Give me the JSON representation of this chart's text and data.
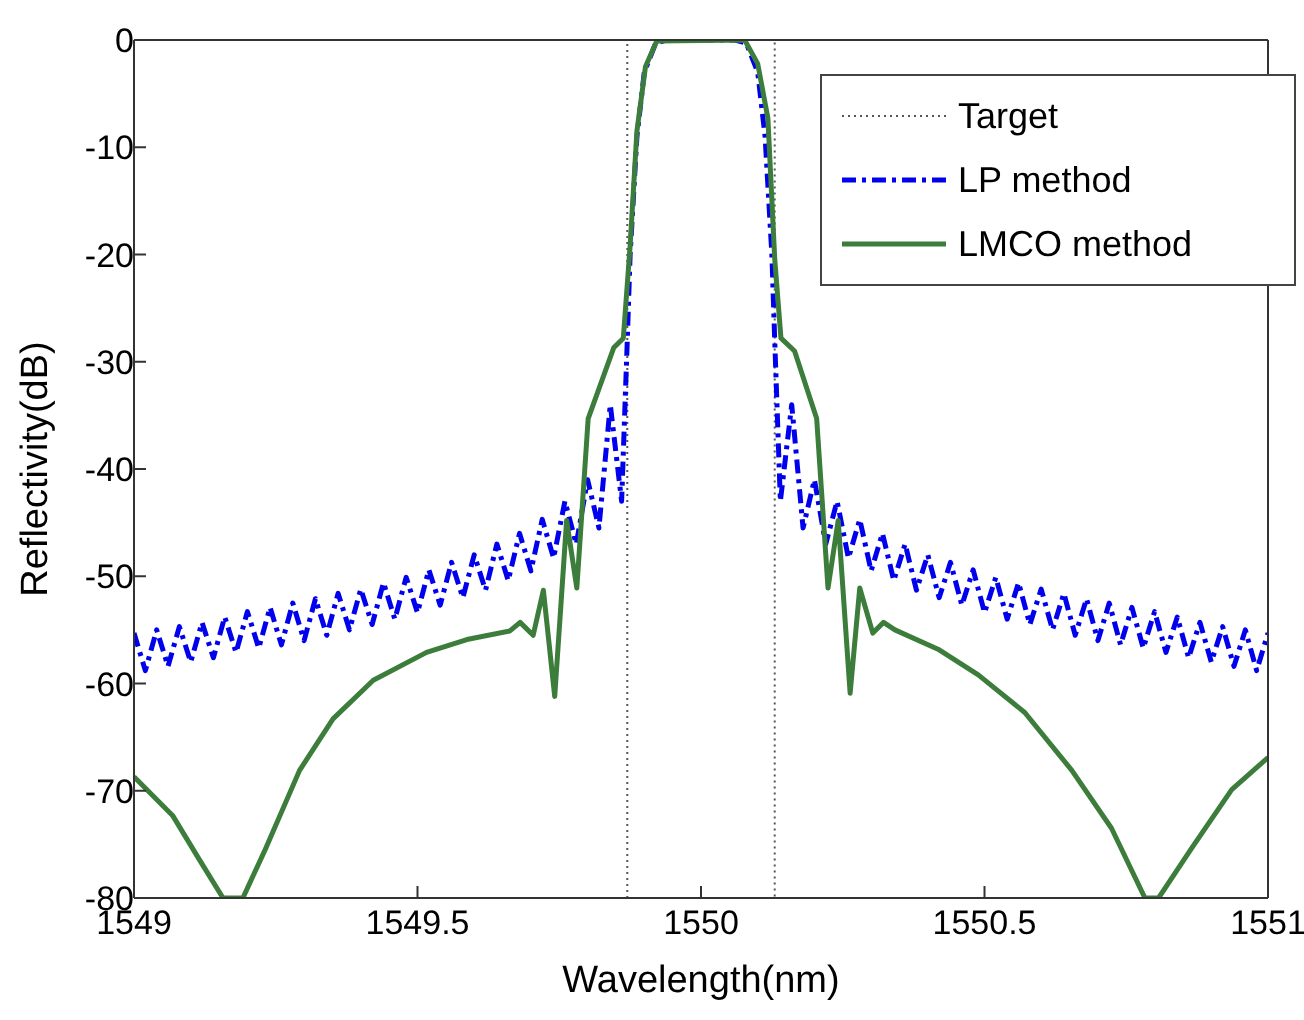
{
  "chart_data": {
    "type": "line",
    "xlabel": "Wavelength(nm)",
    "ylabel": "Reflectivity(dB)",
    "xlim": [
      1549,
      1551
    ],
    "xticks": [
      1549,
      1549.5,
      1550,
      1550.5,
      1551
    ],
    "ylim": [
      -80,
      0
    ],
    "yticks": [
      -80,
      -70,
      -60,
      -50,
      -40,
      -30,
      -20,
      -10,
      0
    ],
    "grid": false,
    "legend": "top right",
    "marker": "none",
    "series": [
      {
        "name": "Target",
        "color": "#555555",
        "line_style": "dotted",
        "x": [
          1549.87,
          1549.87,
          1550.13,
          1550.13
        ],
        "values": [
          -80,
          0,
          0,
          -80
        ]
      },
      {
        "name": "LP method",
        "color": "#0000ee",
        "line_style": "dashed",
        "x": [
          1549.0,
          1549.02,
          1549.04,
          1549.06,
          1549.08,
          1549.1,
          1549.12,
          1549.14,
          1549.16,
          1549.18,
          1549.2,
          1549.22,
          1549.24,
          1549.26,
          1549.28,
          1549.3,
          1549.32,
          1549.34,
          1549.36,
          1549.38,
          1549.4,
          1549.42,
          1549.44,
          1549.46,
          1549.48,
          1549.5,
          1549.52,
          1549.54,
          1549.56,
          1549.58,
          1549.6,
          1549.62,
          1549.64,
          1549.66,
          1549.68,
          1549.7,
          1549.72,
          1549.74,
          1549.76,
          1549.78,
          1549.8,
          1549.82,
          1549.84,
          1549.86,
          1549.87,
          1549.875,
          1549.887,
          1549.9,
          1549.92,
          1549.94,
          1550.06,
          1550.08,
          1550.1,
          1550.113,
          1550.125,
          1550.13,
          1550.14,
          1550.16,
          1550.18,
          1550.2,
          1550.22,
          1550.24,
          1550.26,
          1550.28,
          1550.3,
          1550.32,
          1550.34,
          1550.36,
          1550.38,
          1550.4,
          1550.42,
          1550.44,
          1550.46,
          1550.48,
          1550.5,
          1550.52,
          1550.54,
          1550.56,
          1550.58,
          1550.6,
          1550.62,
          1550.64,
          1550.66,
          1550.68,
          1550.7,
          1550.72,
          1550.74,
          1550.76,
          1550.78,
          1550.8,
          1550.82,
          1550.84,
          1550.86,
          1550.88,
          1550.9,
          1550.92,
          1550.94,
          1550.96,
          1550.98,
          1551.0
        ],
        "values": [
          -55.3,
          -58.8,
          -55.0,
          -58.4,
          -54.7,
          -58.0,
          -54.3,
          -57.6,
          -53.8,
          -57.1,
          -53.3,
          -56.7,
          -52.9,
          -56.4,
          -52.5,
          -56.0,
          -52.1,
          -55.5,
          -51.6,
          -55.0,
          -51.2,
          -54.5,
          -50.6,
          -54.0,
          -50.1,
          -53.4,
          -49.4,
          -52.7,
          -48.7,
          -52.0,
          -48.0,
          -51.3,
          -47.0,
          -50.4,
          -46.0,
          -49.5,
          -44.7,
          -48.3,
          -43.0,
          -47.0,
          -41.0,
          -45.5,
          -34.0,
          -43.0,
          -28,
          -20,
          -9,
          -3,
          -0.3,
          0,
          0,
          -0.3,
          -3,
          -9,
          -20,
          -28,
          -43.0,
          -34.0,
          -45.5,
          -41.0,
          -47.0,
          -43.0,
          -48.3,
          -44.7,
          -49.5,
          -46.0,
          -50.4,
          -47.0,
          -51.3,
          -48.0,
          -52.0,
          -48.7,
          -52.7,
          -49.4,
          -53.4,
          -50.1,
          -54.0,
          -50.6,
          -54.5,
          -51.2,
          -55.0,
          -51.6,
          -55.5,
          -52.1,
          -56.0,
          -52.5,
          -56.4,
          -52.9,
          -56.7,
          -53.3,
          -57.1,
          -53.8,
          -57.6,
          -54.3,
          -58.0,
          -54.7,
          -58.4,
          -55.0,
          -58.8,
          -55.3
        ]
      },
      {
        "name": "LMCO method",
        "color": "#3c7d3c",
        "line_style": "solid",
        "x": [
          1549.0,
          1549.068,
          1549.115,
          1549.157,
          1549.192,
          1549.233,
          1549.292,
          1549.351,
          1549.422,
          1549.516,
          1549.587,
          1549.663,
          1549.681,
          1549.704,
          1549.722,
          1549.742,
          1549.763,
          1549.781,
          1549.801,
          1549.846,
          1549.863,
          1549.875,
          1549.887,
          1549.902,
          1549.922,
          1550.077,
          1550.1,
          1550.118,
          1550.13,
          1550.141,
          1550.165,
          1550.204,
          1550.224,
          1550.242,
          1550.263,
          1550.28,
          1550.303,
          1550.322,
          1550.342,
          1550.418,
          1550.489,
          1550.571,
          1550.654,
          1550.724,
          1550.783,
          1550.807,
          1550.866,
          1550.936,
          1551.0
        ],
        "values": [
          -68.7,
          -72.3,
          -76.4,
          -80,
          -80,
          -75.3,
          -68.1,
          -63.3,
          -59.7,
          -57.1,
          -55.9,
          -55.1,
          -54.3,
          -55.5,
          -51.3,
          -61.2,
          -44.8,
          -51.1,
          -35.3,
          -28.7,
          -27.8,
          -19.2,
          -8.5,
          -2.5,
          -0.1,
          0,
          -2.2,
          -7.3,
          -20.4,
          -27.8,
          -29.0,
          -35.3,
          -51.1,
          -44.8,
          -60.9,
          -51.1,
          -55.3,
          -54.3,
          -55.0,
          -56.8,
          -59.2,
          -62.7,
          -68.1,
          -73.5,
          -80,
          -80,
          -75.3,
          -69.9,
          -66.9
        ]
      }
    ]
  }
}
